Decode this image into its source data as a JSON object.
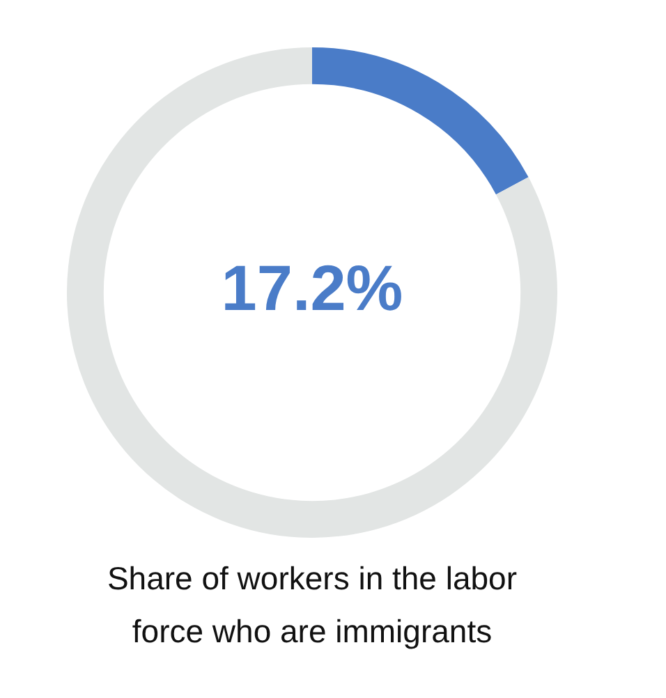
{
  "chart_data": {
    "type": "donut",
    "title": "Share of workers in the labor force who are immigrants",
    "categories": [
      null,
      null
    ],
    "values": [
      17.2,
      82.8
    ],
    "colors": [
      "#4a7cc8",
      "#e2e5e4"
    ],
    "value_labels": [
      "17.2%",
      null
    ],
    "legend": false
  }
}
